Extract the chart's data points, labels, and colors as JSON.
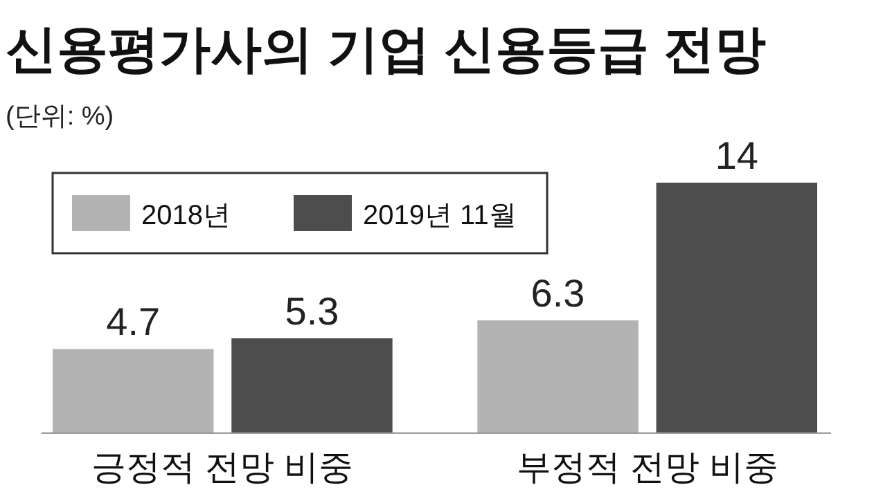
{
  "chart_data": {
    "type": "bar",
    "title": "신용평가사의 기업 신용등급 전망",
    "subtitle": "(단위: %)",
    "categories": [
      "긍정적 전망 비중",
      "부정적 전망 비중"
    ],
    "series": [
      {
        "name": "2018년",
        "color": "#b3b3b3",
        "values": [
          4.7,
          6.3
        ]
      },
      {
        "name": "2019년 11월",
        "color": "#4d4d4d",
        "values": [
          5.3,
          14
        ]
      }
    ],
    "data_labels": true,
    "legend": "top left",
    "grid": false
  }
}
